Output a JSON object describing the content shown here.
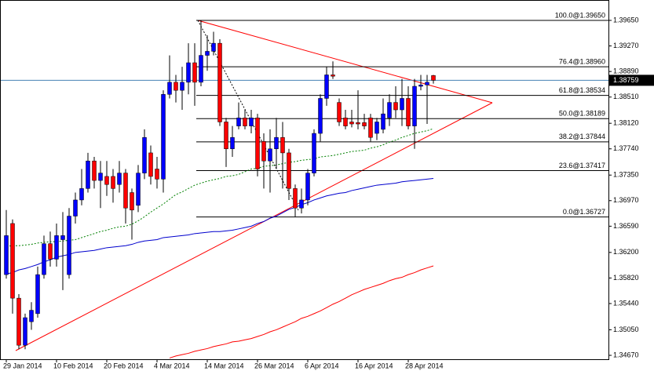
{
  "chart_data": {
    "type": "candlestick",
    "categories": [
      "29 Jan 2014",
      null,
      null,
      null,
      null,
      null,
      null,
      null,
      "10 Feb 2014",
      null,
      null,
      null,
      null,
      null,
      null,
      null,
      "20 Feb 2014",
      null,
      null,
      null,
      null,
      null,
      null,
      null,
      "4 Mar 2014",
      null,
      null,
      null,
      null,
      null,
      null,
      null,
      "14 Mar 2014",
      null,
      null,
      null,
      null,
      null,
      null,
      null,
      "26 Mar 2014",
      null,
      null,
      null,
      null,
      null,
      null,
      null,
      "6 Apr 2014",
      null,
      null,
      null,
      null,
      null,
      null,
      null,
      "16 Apr 2014",
      null,
      null,
      null,
      null,
      null,
      null,
      null,
      "28 Apr 2014",
      null,
      null,
      null,
      null
    ],
    "open": [
      1.3587,
      1.3663,
      1.3552,
      1.3482,
      1.3517,
      1.3529,
      1.3587,
      1.3633,
      1.361,
      1.3639,
      1.3587,
      1.3674,
      1.3698,
      1.3715,
      1.3756,
      1.3727,
      1.3733,
      1.3733,
      1.3721,
      1.3738,
      1.3709,
      1.369,
      1.3738,
      1.3768,
      1.3744,
      1.3729,
      1.3855,
      1.3873,
      1.3861,
      1.3873,
      1.3902,
      1.3873,
      1.3913,
      1.3919,
      1.3931,
      1.3814,
      1.3774,
      1.3808,
      1.382,
      1.3808,
      1.382,
      1.3785,
      1.3756,
      1.3774,
      1.3791,
      1.3768,
      1.3715,
      1.3686,
      1.3698,
      1.3738,
      1.3797,
      1.3849,
      1.3884,
      1.3843,
      1.382,
      1.3814,
      1.3813,
      1.3813,
      1.382,
      1.3797,
      1.3803,
      1.382,
      1.3843,
      1.3832,
      1.3849,
      1.3808,
      1.3867,
      1.3869,
      1.3883
    ],
    "high": [
      1.3683,
      1.3669,
      1.3558,
      1.3529,
      1.3546,
      1.3599,
      1.3645,
      1.3651,
      1.3663,
      1.368,
      1.3686,
      1.3709,
      1.3744,
      1.3768,
      1.3762,
      1.3756,
      1.3756,
      1.3744,
      1.3756,
      1.3744,
      1.3715,
      1.375,
      1.3803,
      1.3779,
      1.3762,
      1.3861,
      1.3913,
      1.3884,
      1.3896,
      1.3931,
      1.3931,
      1.3965,
      1.3943,
      1.3948,
      1.3937,
      1.382,
      1.3808,
      1.3843,
      1.3832,
      1.3832,
      1.3826,
      1.3797,
      1.3803,
      1.382,
      1.3814,
      1.3774,
      1.3721,
      1.3715,
      1.3744,
      1.3803,
      1.3855,
      1.3896,
      1.3904,
      1.3849,
      1.3832,
      1.3832,
      1.3861,
      1.3826,
      1.3826,
      1.382,
      1.3849,
      1.3855,
      1.3867,
      1.3878,
      1.3867,
      1.3878,
      1.3884,
      1.3884,
      1.3884
    ],
    "low": [
      1.3581,
      1.3529,
      1.3476,
      1.3476,
      1.3505,
      1.3523,
      1.3581,
      1.3599,
      1.3599,
      1.3564,
      1.3581,
      1.3663,
      1.369,
      1.3709,
      1.3715,
      1.3686,
      1.3704,
      1.3694,
      1.3709,
      1.3663,
      1.3639,
      1.368,
      1.3729,
      1.3721,
      1.3715,
      1.3709,
      1.3849,
      1.3843,
      1.3832,
      1.3855,
      1.3838,
      1.3867,
      1.389,
      1.3913,
      1.3808,
      1.3747,
      1.3762,
      1.3803,
      1.3803,
      1.3797,
      1.3733,
      1.3715,
      1.3709,
      1.3744,
      1.3715,
      1.3698,
      1.3673,
      1.3678,
      1.369,
      1.3733,
      1.3785,
      1.3838,
      1.3878,
      1.3808,
      1.3803,
      1.3806,
      1.3803,
      1.3803,
      1.3785,
      1.3787,
      1.3797,
      1.3808,
      1.382,
      1.3808,
      1.3803,
      1.3774,
      1.3861,
      1.3811,
      1.3871
    ],
    "close": [
      1.3645,
      1.3552,
      1.3482,
      1.3523,
      1.3534,
      1.3587,
      1.3633,
      1.361,
      1.3645,
      1.3645,
      1.3674,
      1.3698,
      1.3715,
      1.3756,
      1.3727,
      1.3738,
      1.3721,
      1.3715,
      1.3738,
      1.3686,
      1.3683,
      1.3738,
      1.3791,
      1.3733,
      1.3729,
      1.3855,
      1.3873,
      1.3861,
      1.3873,
      1.3902,
      1.3873,
      1.3913,
      1.3919,
      1.3931,
      1.3814,
      1.3774,
      1.3791,
      1.382,
      1.3808,
      1.382,
      1.3744,
      1.3756,
      1.3774,
      1.3791,
      1.3768,
      1.3715,
      1.3686,
      1.3698,
      1.3738,
      1.3797,
      1.3849,
      1.3884,
      1.3882,
      1.3814,
      1.3808,
      1.3811,
      1.3811,
      1.3808,
      1.3791,
      1.3814,
      1.3826,
      1.3843,
      1.3832,
      1.3849,
      1.3808,
      1.3867,
      1.3869,
      1.3873,
      1.38759
    ],
    "up_color": "#0000ff",
    "down_color": "#ff0000",
    "overlays": [
      {
        "color": "#008000",
        "style": "dotted",
        "values": [
          1.3629,
          1.363,
          1.363,
          1.3631,
          1.3632,
          1.3634,
          1.3635,
          1.3636,
          1.3636,
          1.3637,
          1.3638,
          1.3639,
          1.3642,
          1.3645,
          1.3648,
          1.3651,
          1.3653,
          1.3656,
          1.3658,
          1.3659,
          1.3662,
          1.3667,
          1.3673,
          1.368,
          1.3686,
          1.3692,
          1.3699,
          1.3706,
          1.371,
          1.3715,
          1.372,
          1.3723,
          1.3726,
          1.3728,
          1.373,
          1.3733,
          1.3734,
          1.3736,
          1.374,
          1.3744,
          1.3745,
          1.3748,
          1.3749,
          1.375,
          1.3752,
          1.3754,
          1.3755,
          1.3757,
          1.3758,
          1.3759,
          1.3762,
          1.3763,
          1.3764,
          1.3766,
          1.3768,
          1.377,
          1.3771,
          1.3772,
          1.3775,
          1.3777,
          1.378,
          1.3784,
          1.3787,
          1.3791,
          1.3794,
          1.3797,
          1.3799,
          1.3801,
          1.3804
        ]
      },
      {
        "color": "#0000cd",
        "style": "solid",
        "values": [
          1.3588,
          1.359,
          1.3594,
          1.3596,
          1.3599,
          1.3602,
          1.3606,
          1.3609,
          1.3613,
          1.3615,
          1.3617,
          1.362,
          1.3621,
          1.3622,
          1.3623,
          1.3625,
          1.3627,
          1.3628,
          1.3629,
          1.363,
          1.3632,
          1.3635,
          1.3637,
          1.3638,
          1.3639,
          1.3642,
          1.3643,
          1.3644,
          1.3645,
          1.3646,
          1.3648,
          1.3649,
          1.365,
          1.3651,
          1.3651,
          1.3652,
          1.3653,
          1.3655,
          1.3657,
          1.3659,
          1.3663,
          1.3666,
          1.3671,
          1.3674,
          1.3679,
          1.3684,
          1.3687,
          1.3691,
          1.3694,
          1.3698,
          1.3701,
          1.3704,
          1.3706,
          1.3708,
          1.3709,
          1.3712,
          1.3714,
          1.3716,
          1.3718,
          1.372,
          1.3721,
          1.3722,
          1.3723,
          1.3725,
          1.3726,
          1.3727,
          1.3728,
          1.3729,
          1.373
        ]
      },
      {
        "color": "#ff0000",
        "style": "solid",
        "values": [
          null,
          null,
          null,
          null,
          null,
          null,
          null,
          null,
          null,
          null,
          null,
          null,
          null,
          null,
          null,
          null,
          null,
          null,
          null,
          null,
          null,
          null,
          null,
          null,
          null,
          null,
          1.3463,
          1.3466,
          1.3468,
          1.347,
          1.3473,
          1.3475,
          1.3477,
          1.348,
          1.3482,
          1.3484,
          1.3487,
          1.3488,
          1.349,
          1.3492,
          1.3495,
          1.3498,
          1.3502,
          1.3505,
          1.3509,
          1.3513,
          1.3517,
          1.3522,
          1.3525,
          1.3529,
          1.3533,
          1.3538,
          1.3543,
          1.3547,
          1.3552,
          1.3557,
          1.3561,
          1.3565,
          1.3568,
          1.3571,
          1.3574,
          1.3578,
          1.3581,
          1.3583,
          1.3587,
          1.359,
          1.3594,
          1.3597,
          1.36
        ]
      }
    ],
    "fib_levels": [
      {
        "value": 1.3965,
        "label": "100.0@1.39650"
      },
      {
        "value": 1.3896,
        "label": "76.4@1.38960"
      },
      {
        "value": 1.38534,
        "label": "61.8@1.38534"
      },
      {
        "value": 1.38189,
        "label": "50.0@1.38189"
      },
      {
        "value": 1.37844,
        "label": "38.2@1.37844"
      },
      {
        "value": 1.37417,
        "label": "23.6@1.37417"
      },
      {
        "value": 1.36727,
        "label": "0.0@1.36727"
      }
    ],
    "current_price": {
      "value": 1.38759,
      "label": "1.38759"
    },
    "ylim": [
      1.34612,
      1.39953
    ],
    "yticks": [
      {
        "value": 1.3965,
        "label": "1.39650"
      },
      {
        "value": 1.3927,
        "label": "1.39270"
      },
      {
        "value": 1.3889,
        "label": "1.38890"
      },
      {
        "value": 1.3851,
        "label": "1.38510"
      },
      {
        "value": 1.3812,
        "label": "1.38120"
      },
      {
        "value": 1.3774,
        "label": "1.37740"
      },
      {
        "value": 1.3735,
        "label": "1.37350"
      },
      {
        "value": 1.3697,
        "label": "1.36970"
      },
      {
        "value": 1.3659,
        "label": "1.36590"
      },
      {
        "value": 1.362,
        "label": "1.36200"
      },
      {
        "value": 1.3582,
        "label": "1.35820"
      },
      {
        "value": 1.3544,
        "label": "1.35440"
      },
      {
        "value": 1.3505,
        "label": "1.35050"
      },
      {
        "value": 1.3467,
        "label": "1.34670"
      }
    ]
  }
}
